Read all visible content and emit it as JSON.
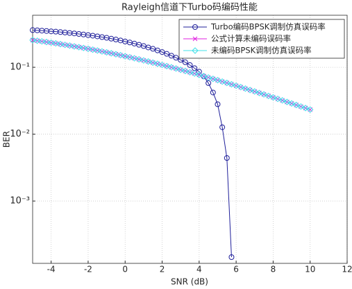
{
  "chart_data": {
    "type": "line",
    "title": "Rayleigh信道下Turbo码编码性能",
    "x_label": "SNR (dB)",
    "y_label": "BER",
    "log_y": true,
    "grid": true,
    "legend_position": "upper-right",
    "xlim": [
      -5,
      12
    ],
    "xticks": [
      -4,
      -2,
      0,
      2,
      4,
      6,
      8,
      10,
      12
    ],
    "ylim": [
      0.000117,
      0.6
    ],
    "yticks": [
      {
        "value": 0.1,
        "label": "10⁻¹"
      },
      {
        "value": 0.01,
        "label": "10⁻²"
      },
      {
        "value": 0.001,
        "label": "10⁻³"
      }
    ],
    "x": [
      -5,
      -4.75,
      -4.5,
      -4.25,
      -4,
      -3.75,
      -3.5,
      -3.25,
      -3,
      -2.75,
      -2.5,
      -2.25,
      -2,
      -1.75,
      -1.5,
      -1.25,
      -1,
      -0.75,
      -0.5,
      -0.25,
      0,
      0.25,
      0.5,
      0.75,
      1,
      1.25,
      1.5,
      1.75,
      2,
      2.25,
      2.5,
      2.75,
      3,
      3.25,
      3.5,
      3.75,
      4,
      4.25,
      4.5,
      4.75,
      5,
      5.25,
      5.5,
      5.75,
      6,
      6.25,
      6.5,
      6.75,
      7,
      7.25,
      7.5,
      7.75,
      8,
      8.25,
      8.5,
      8.75,
      9,
      9.25,
      9.5,
      9.75,
      10
    ],
    "series": [
      {
        "name": "Turbo编码BPSK调制仿真误码率",
        "color": "#1f1f9a",
        "marker": "circle",
        "values": [
          0.36,
          0.357,
          0.353,
          0.349,
          0.345,
          0.341,
          0.336,
          0.331,
          0.326,
          0.321,
          0.315,
          0.309,
          0.303,
          0.297,
          0.29,
          0.283,
          0.276,
          0.268,
          0.26,
          0.252,
          0.243,
          0.235,
          0.226,
          0.217,
          0.208,
          0.198,
          0.189,
          0.179,
          0.169,
          0.159,
          0.149,
          0.139,
          0.129,
          0.119,
          0.108,
          0.097,
          0.086,
          0.073,
          0.058,
          0.042,
          0.028,
          0.0127,
          0.0044,
          0.000145,
          null,
          null,
          null,
          null,
          null,
          null,
          null,
          null,
          null,
          null,
          null,
          null,
          null,
          null,
          null,
          null,
          null
        ]
      },
      {
        "name": "公式计算未编码误码率",
        "color": "#e020e0",
        "marker": "x",
        "values": [
          0.2549,
          0.2495,
          0.2441,
          0.2387,
          0.2332,
          0.2277,
          0.2222,
          0.2166,
          0.2111,
          0.2055,
          0.2,
          0.1945,
          0.189,
          0.1835,
          0.1781,
          0.1727,
          0.1673,
          0.162,
          0.1568,
          0.1516,
          0.1464,
          0.1414,
          0.1364,
          0.1315,
          0.1267,
          0.122,
          0.1174,
          0.1129,
          0.1085,
          0.1042,
          0.1,
          0.0959,
          0.0919,
          0.0881,
          0.0843,
          0.0807,
          0.0771,
          0.0737,
          0.0704,
          0.0672,
          0.0642,
          0.0612,
          0.0584,
          0.0557,
          0.053,
          0.0505,
          0.048,
          0.0457,
          0.0435,
          0.0413,
          0.0393,
          0.0373,
          0.0355,
          0.0337,
          0.032,
          0.0303,
          0.0288,
          0.0273,
          0.0259,
          0.0246,
          0.0233
        ]
      },
      {
        "name": "未编码BPSK调制仿真误码率",
        "color": "#40e0e8",
        "marker": "diamond",
        "values": [
          0.2549,
          0.2495,
          0.2441,
          0.2387,
          0.2332,
          0.2277,
          0.2222,
          0.2166,
          0.2111,
          0.2055,
          0.2,
          0.1945,
          0.189,
          0.1835,
          0.1781,
          0.1727,
          0.1673,
          0.162,
          0.1568,
          0.1516,
          0.1464,
          0.1414,
          0.1364,
          0.1315,
          0.1267,
          0.122,
          0.1174,
          0.1129,
          0.1085,
          0.1042,
          0.1,
          0.0959,
          0.0919,
          0.0881,
          0.0843,
          0.0807,
          0.0771,
          0.0737,
          0.0704,
          0.0672,
          0.0642,
          0.0612,
          0.0584,
          0.0557,
          0.053,
          0.0505,
          0.048,
          0.0457,
          0.0435,
          0.0413,
          0.0393,
          0.0373,
          0.0355,
          0.0337,
          0.032,
          0.0303,
          0.0288,
          0.0273,
          0.0259,
          0.0246,
          0.0233
        ]
      }
    ]
  }
}
